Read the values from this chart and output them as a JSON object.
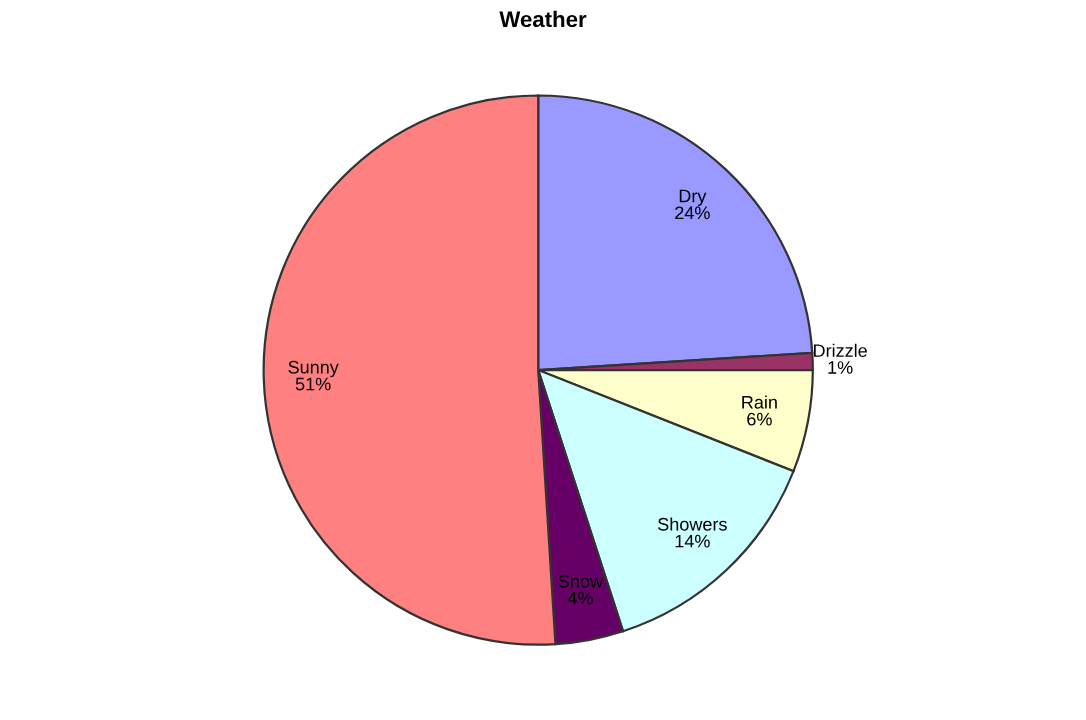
{
  "chart_data": {
    "type": "pie",
    "title": "Weather",
    "categories": [
      "Dry",
      "Drizzle",
      "Rain",
      "Showers",
      "Snow",
      "Sunny"
    ],
    "values": [
      24,
      1,
      6,
      14,
      4,
      51
    ],
    "colors": [
      "#9999ff",
      "#993366",
      "#ffffcc",
      "#ccffff",
      "#660066",
      "#ff8080"
    ],
    "value_labels": [
      "24%",
      "1%",
      "6%",
      "14%",
      "4%",
      "51%"
    ]
  }
}
